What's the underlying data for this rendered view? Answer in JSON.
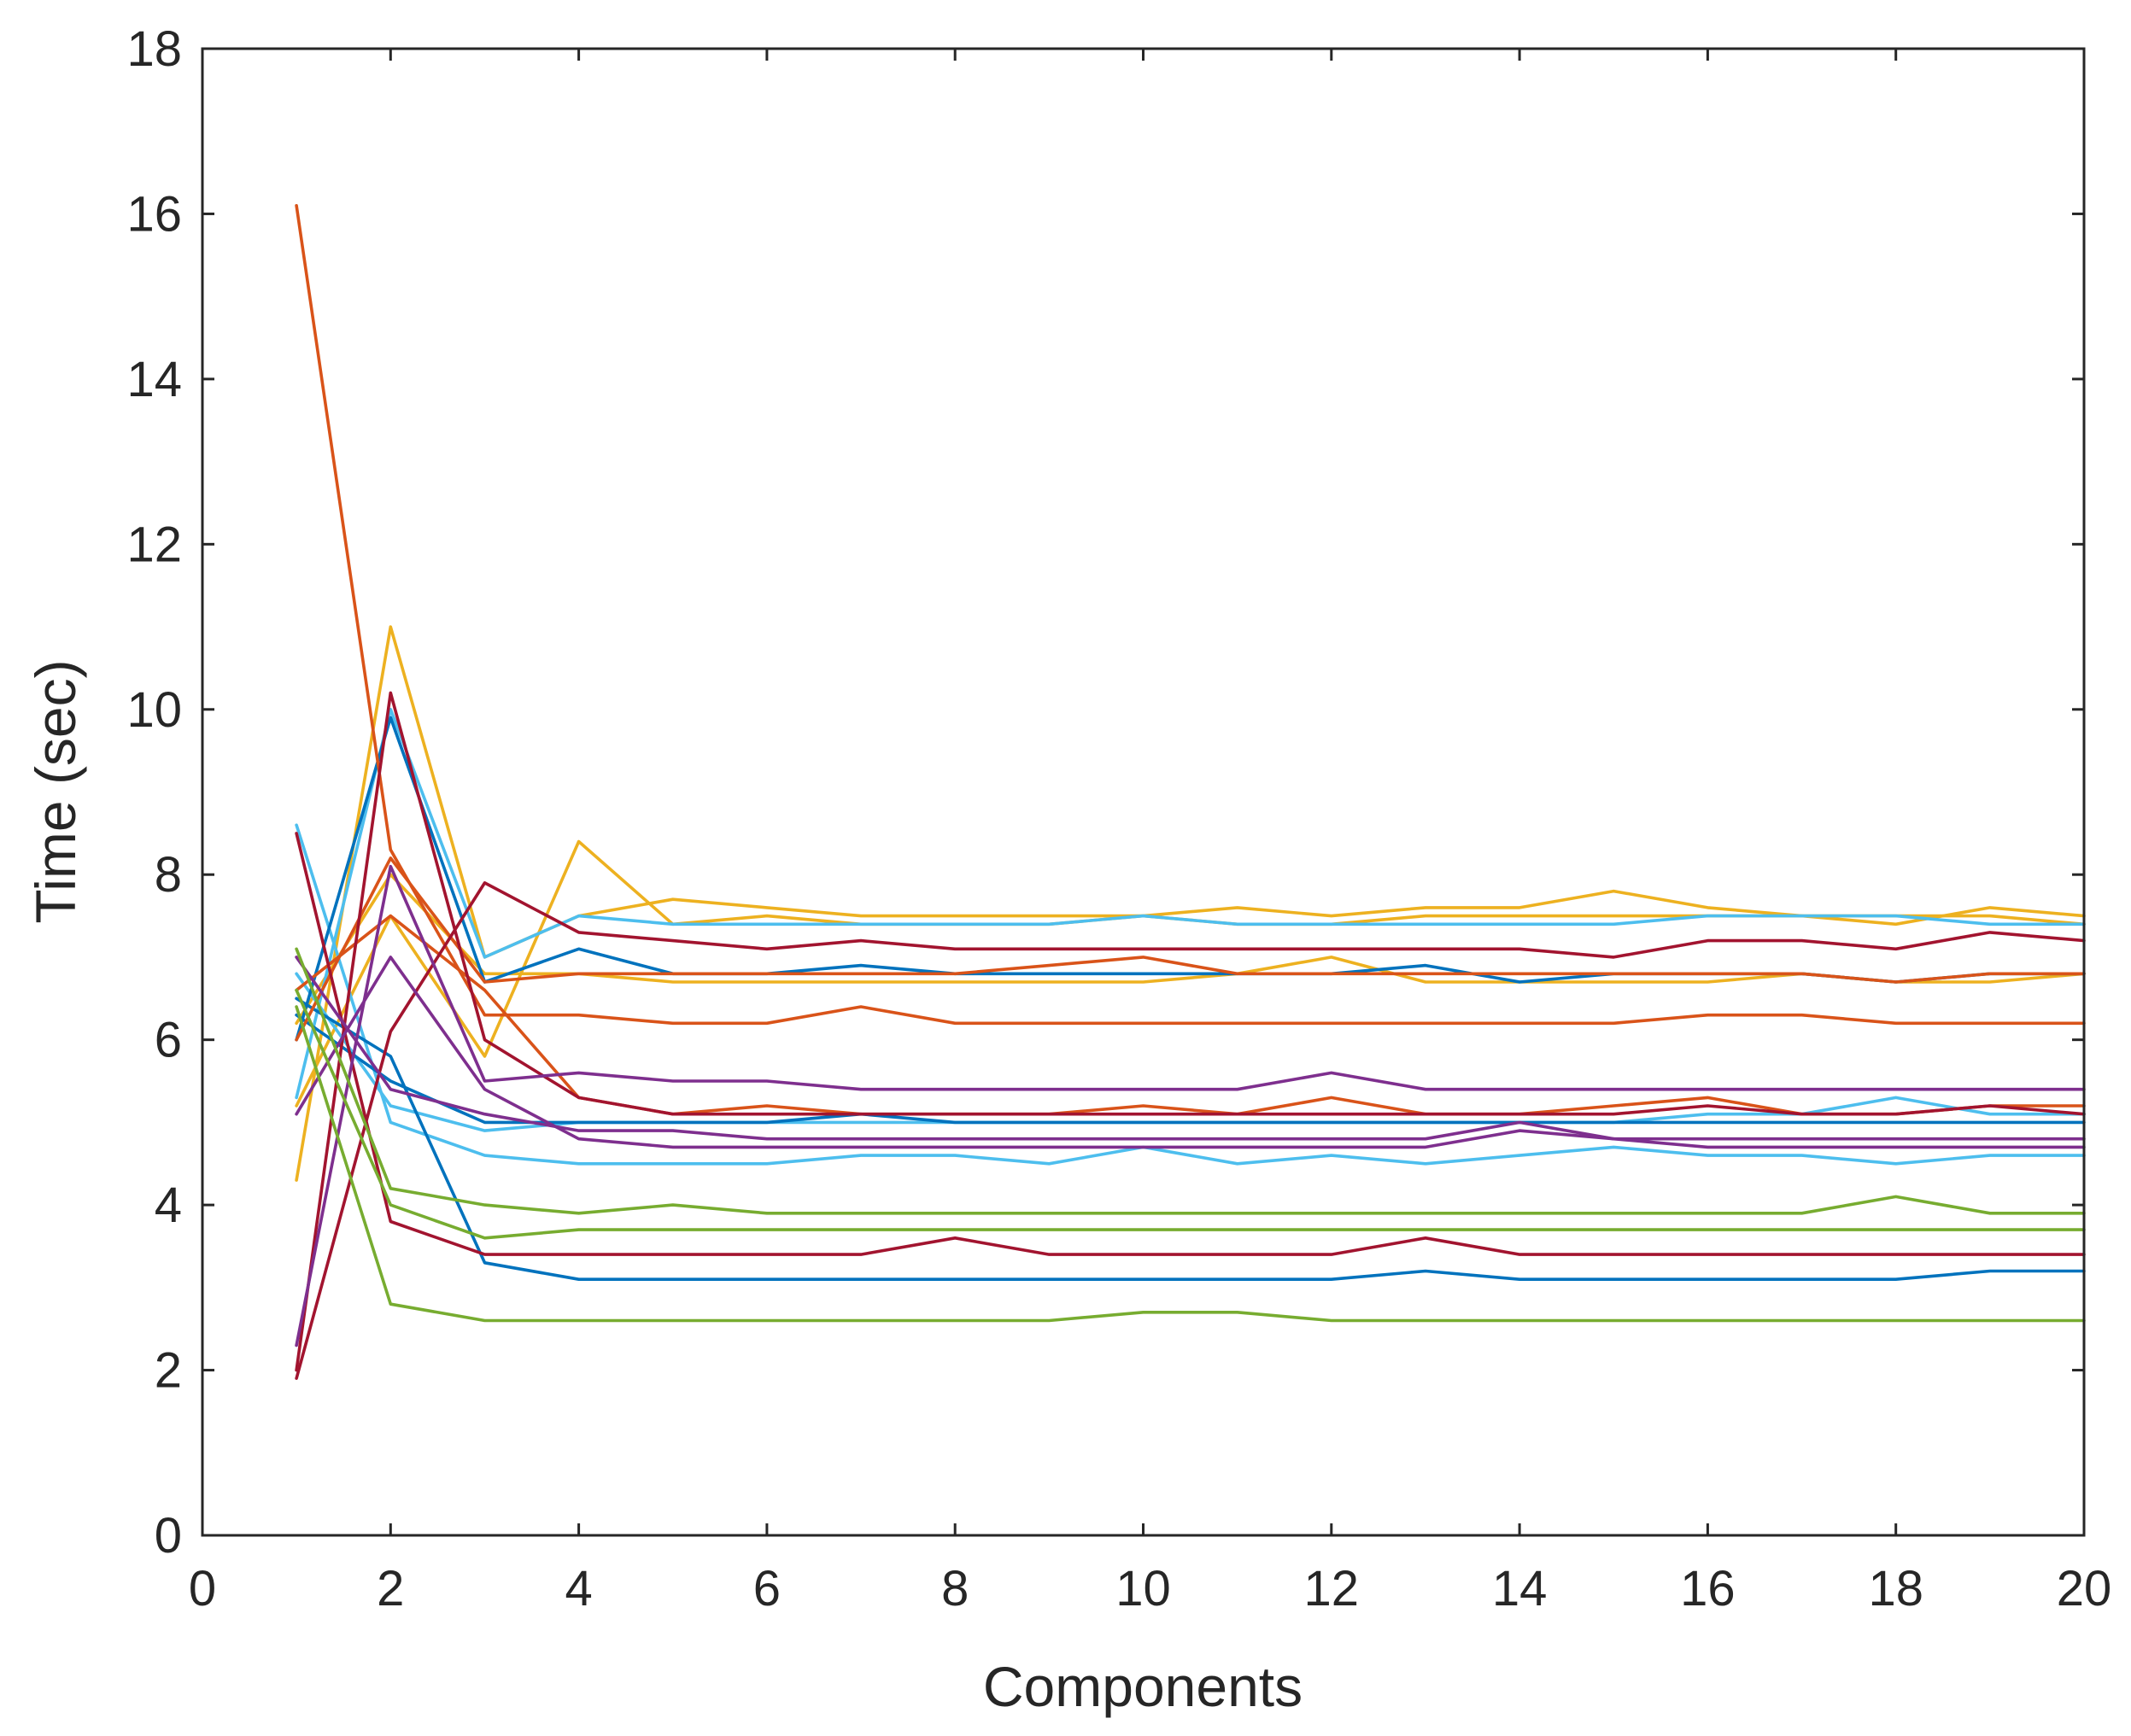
{
  "chart_data": {
    "type": "line",
    "title": "",
    "xlabel": "Components",
    "ylabel": "Time (sec)",
    "xlim": [
      0,
      20
    ],
    "ylim": [
      0,
      18
    ],
    "xticks": [
      0,
      2,
      4,
      6,
      8,
      10,
      12,
      14,
      16,
      18,
      20
    ],
    "yticks": [
      0,
      2,
      4,
      6,
      8,
      10,
      12,
      14,
      16,
      18
    ],
    "grid": false,
    "legend": "none",
    "x": [
      1,
      2,
      3,
      4,
      5,
      6,
      7,
      8,
      9,
      10,
      11,
      12,
      13,
      14,
      15,
      16,
      17,
      18,
      19,
      20
    ],
    "series": [
      {
        "color": "#EDB120",
        "values": [
          4.3,
          11.0,
          7.0,
          7.5,
          7.7,
          7.6,
          7.5,
          7.5,
          7.5,
          7.5,
          7.6,
          7.5,
          7.6,
          7.6,
          7.8,
          7.6,
          7.5,
          7.4,
          7.6,
          7.5
        ]
      },
      {
        "color": "#EDB120",
        "values": [
          5.2,
          7.5,
          5.8,
          8.4,
          7.4,
          7.5,
          7.4,
          7.4,
          7.4,
          7.5,
          7.4,
          7.4,
          7.5,
          7.5,
          7.5,
          7.5,
          7.5,
          7.5,
          7.5,
          7.4
        ]
      },
      {
        "color": "#EDB120",
        "values": [
          6.2,
          8.0,
          6.8,
          6.8,
          6.7,
          6.7,
          6.7,
          6.7,
          6.7,
          6.7,
          6.8,
          7.0,
          6.7,
          6.7,
          6.7,
          6.7,
          6.8,
          6.7,
          6.7,
          6.8
        ]
      },
      {
        "color": "#4DBEEE",
        "values": [
          8.6,
          5.0,
          4.6,
          4.5,
          4.5,
          4.5,
          4.6,
          4.6,
          4.5,
          4.7,
          4.5,
          4.6,
          4.5,
          4.6,
          4.7,
          4.6,
          4.6,
          4.5,
          4.6,
          4.6
        ]
      },
      {
        "color": "#4DBEEE",
        "values": [
          5.3,
          10.0,
          7.0,
          7.5,
          7.4,
          7.4,
          7.4,
          7.4,
          7.4,
          7.5,
          7.4,
          7.4,
          7.4,
          7.4,
          7.4,
          7.5,
          7.5,
          7.5,
          7.4,
          7.4
        ]
      },
      {
        "color": "#4DBEEE",
        "values": [
          6.8,
          5.2,
          4.9,
          5.0,
          5.0,
          5.0,
          5.0,
          5.0,
          5.0,
          5.0,
          5.0,
          5.0,
          5.0,
          5.0,
          5.0,
          5.1,
          5.1,
          5.3,
          5.1,
          5.1
        ]
      },
      {
        "color": "#0072BD",
        "values": [
          6.5,
          5.8,
          3.3,
          3.1,
          3.1,
          3.1,
          3.1,
          3.1,
          3.1,
          3.1,
          3.1,
          3.1,
          3.2,
          3.1,
          3.1,
          3.1,
          3.1,
          3.1,
          3.2,
          3.2
        ]
      },
      {
        "color": "#0072BD",
        "values": [
          6.0,
          9.9,
          6.7,
          7.1,
          6.8,
          6.8,
          6.9,
          6.8,
          6.8,
          6.8,
          6.8,
          6.8,
          6.9,
          6.7,
          6.8,
          6.8,
          6.8,
          6.7,
          6.8,
          6.8
        ]
      },
      {
        "color": "#0072BD",
        "values": [
          6.3,
          5.5,
          5.0,
          5.0,
          5.0,
          5.0,
          5.1,
          5.0,
          5.0,
          5.0,
          5.0,
          5.0,
          5.0,
          5.0,
          5.0,
          5.0,
          5.0,
          5.0,
          5.0,
          5.0
        ]
      },
      {
        "color": "#D95319",
        "values": [
          16.1,
          8.3,
          6.3,
          6.3,
          6.2,
          6.2,
          6.4,
          6.2,
          6.2,
          6.2,
          6.2,
          6.2,
          6.2,
          6.2,
          6.2,
          6.3,
          6.3,
          6.2,
          6.2,
          6.2
        ]
      },
      {
        "color": "#D95319",
        "values": [
          6.0,
          8.2,
          6.7,
          6.8,
          6.8,
          6.8,
          6.8,
          6.8,
          6.9,
          7.0,
          6.8,
          6.8,
          6.8,
          6.8,
          6.8,
          6.8,
          6.8,
          6.7,
          6.8,
          6.8
        ]
      },
      {
        "color": "#D95319",
        "values": [
          6.6,
          7.5,
          6.6,
          5.3,
          5.1,
          5.2,
          5.1,
          5.1,
          5.1,
          5.2,
          5.1,
          5.3,
          5.1,
          5.1,
          5.2,
          5.3,
          5.1,
          5.1,
          5.2,
          5.2
        ]
      },
      {
        "color": "#A2142F",
        "values": [
          8.5,
          3.8,
          3.4,
          3.4,
          3.4,
          3.4,
          3.4,
          3.6,
          3.4,
          3.4,
          3.4,
          3.4,
          3.6,
          3.4,
          3.4,
          3.4,
          3.4,
          3.4,
          3.4,
          3.4
        ]
      },
      {
        "color": "#A2142F",
        "values": [
          1.9,
          6.1,
          7.9,
          7.3,
          7.2,
          7.1,
          7.2,
          7.1,
          7.1,
          7.1,
          7.1,
          7.1,
          7.1,
          7.1,
          7.0,
          7.2,
          7.2,
          7.1,
          7.3,
          7.2
        ]
      },
      {
        "color": "#A2142F",
        "values": [
          2.0,
          10.2,
          6.0,
          5.3,
          5.1,
          5.1,
          5.1,
          5.1,
          5.1,
          5.1,
          5.1,
          5.1,
          5.1,
          5.1,
          5.1,
          5.2,
          5.1,
          5.1,
          5.2,
          5.1
        ]
      },
      {
        "color": "#7E2F8E",
        "values": [
          2.3,
          8.1,
          5.5,
          5.6,
          5.5,
          5.5,
          5.4,
          5.4,
          5.4,
          5.4,
          5.4,
          5.6,
          5.4,
          5.4,
          5.4,
          5.4,
          5.4,
          5.4,
          5.4,
          5.4
        ]
      },
      {
        "color": "#7E2F8E",
        "values": [
          5.1,
          7.0,
          5.4,
          4.8,
          4.7,
          4.7,
          4.7,
          4.7,
          4.7,
          4.7,
          4.7,
          4.7,
          4.7,
          4.9,
          4.8,
          4.7,
          4.7,
          4.7,
          4.7,
          4.7
        ]
      },
      {
        "color": "#7E2F8E",
        "values": [
          7.0,
          5.4,
          5.1,
          4.9,
          4.9,
          4.8,
          4.8,
          4.8,
          4.8,
          4.8,
          4.8,
          4.8,
          4.8,
          5.0,
          4.8,
          4.8,
          4.8,
          4.8,
          4.8,
          4.8
        ]
      },
      {
        "color": "#77AC30",
        "values": [
          6.4,
          2.8,
          2.6,
          2.6,
          2.6,
          2.6,
          2.6,
          2.6,
          2.6,
          2.7,
          2.7,
          2.6,
          2.6,
          2.6,
          2.6,
          2.6,
          2.6,
          2.6,
          2.6,
          2.6
        ]
      },
      {
        "color": "#77AC30",
        "values": [
          7.1,
          4.2,
          4.0,
          3.9,
          4.0,
          3.9,
          3.9,
          3.9,
          3.9,
          3.9,
          3.9,
          3.9,
          3.9,
          3.9,
          3.9,
          3.9,
          3.9,
          4.1,
          3.9,
          3.9
        ]
      },
      {
        "color": "#77AC30",
        "values": [
          6.6,
          4.0,
          3.6,
          3.7,
          3.7,
          3.7,
          3.7,
          3.7,
          3.7,
          3.7,
          3.7,
          3.7,
          3.7,
          3.7,
          3.7,
          3.7,
          3.7,
          3.7,
          3.7,
          3.7
        ]
      }
    ]
  }
}
